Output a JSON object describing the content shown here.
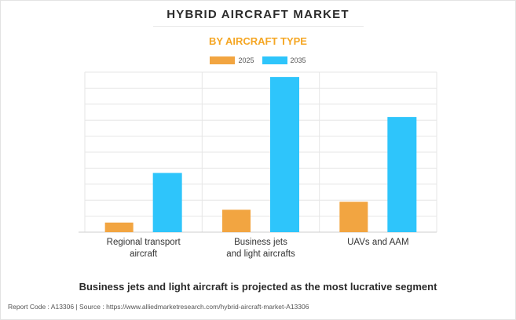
{
  "colors": {
    "c2025": "#f2a541",
    "c2035": "#2ec5fb",
    "grid": "#e6e6e6"
  },
  "chart_data": {
    "type": "bar",
    "title": "HYBRID AIRCRAFT MARKET",
    "subtitle": "BY AIRCRAFT TYPE",
    "categories": [
      [
        "Regional transport",
        "aircraft"
      ],
      [
        "Business jets",
        "and light aircrafts"
      ],
      [
        "UAVs and AAM"
      ]
    ],
    "series": [
      {
        "name": "2025",
        "values": [
          6,
          14,
          19
        ]
      },
      {
        "name": "2035",
        "values": [
          37,
          97,
          72
        ]
      }
    ],
    "ylim": [
      0,
      100
    ],
    "xlabel": "",
    "ylabel": "",
    "grid": true,
    "legend": "top-center",
    "y_ticks_shown": false
  },
  "footer": {
    "note": "Business jets and light aircraft is projected as the most lucrative segment",
    "report": "Report Code : A13306  |  Source : https://www.alliedmarketresearch.com/hybrid-aircraft-market-A13306"
  }
}
